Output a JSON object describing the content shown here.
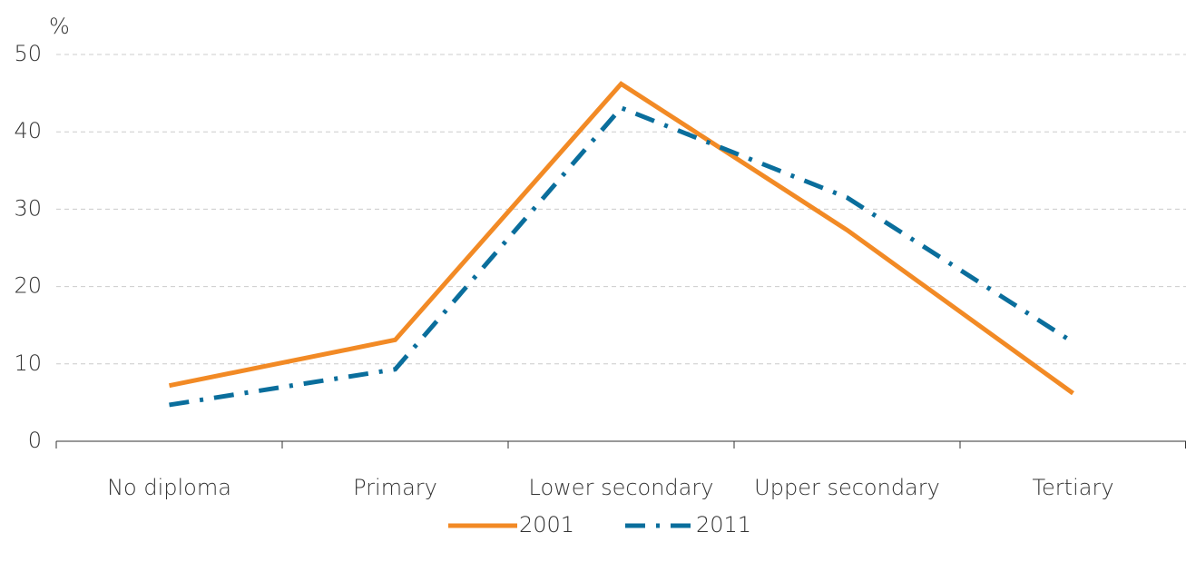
{
  "chart_data": {
    "type": "line",
    "y_label": "%",
    "categories": [
      "No diploma",
      "Primary",
      "Lower secondary",
      "Upper secondary",
      "Tertiary"
    ],
    "series": [
      {
        "name": "2001",
        "color": "#f28a25",
        "style": "solid",
        "values": [
          7.2,
          13.1,
          46.2,
          27.3,
          6.2
        ]
      },
      {
        "name": "2011",
        "color": "#0a6e9c",
        "style": "dashdot",
        "values": [
          4.7,
          9.3,
          43.1,
          31.5,
          12.8
        ]
      }
    ],
    "ylim": [
      0,
      50
    ],
    "yticks": [
      0,
      10,
      20,
      30,
      40,
      50
    ],
    "grid": true,
    "legend": "bottom"
  }
}
